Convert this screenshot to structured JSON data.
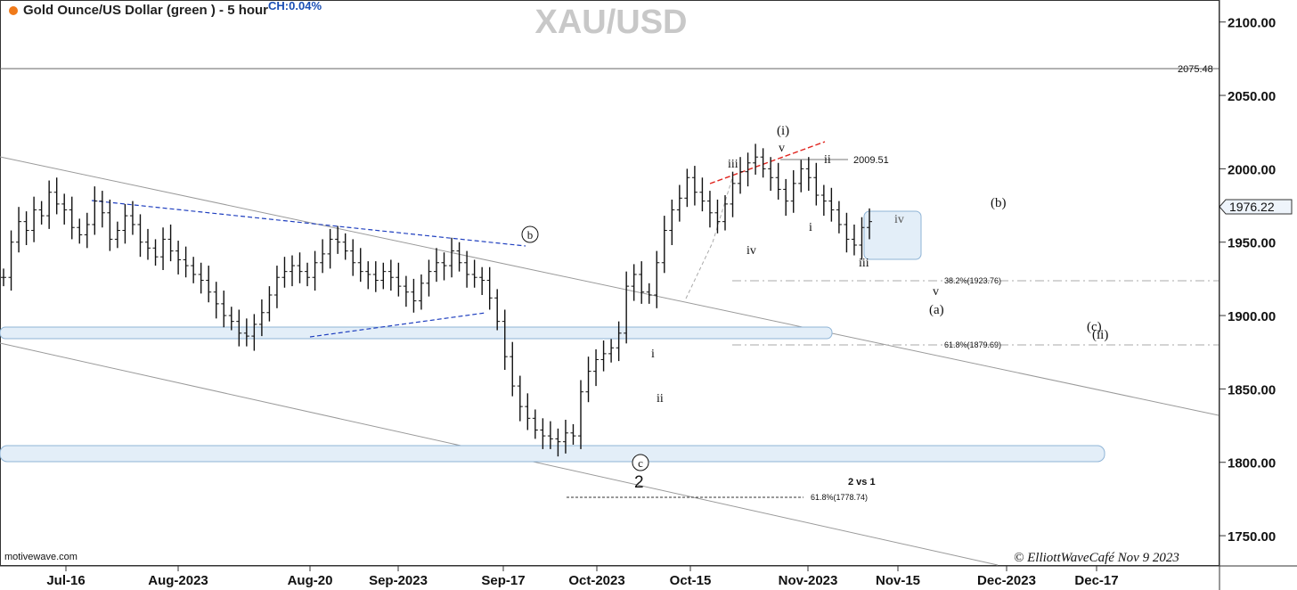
{
  "header": {
    "title": "Gold Ounce/US Dollar (green ) - 5 hour",
    "change": "CH:0.04%",
    "symbol": "XAU/USD"
  },
  "colors": {
    "accent_dot": "#f07a1a",
    "change_text": "#1a4fb5",
    "symbol_text": "#c8c8c8",
    "channel_fill": "#e3eef8",
    "channel_stroke": "#8fb4d6",
    "dashed_blue": "#1f3fbf",
    "dashed_red": "#e0241e",
    "price_bars": "#111111",
    "last_price_box": "#eef4fb"
  },
  "chart_data": {
    "type": "bar",
    "title": "XAU/USD",
    "source": "motivewave.com",
    "copyright": "© ElliottWaveCafé Nov 9 2023",
    "ylim": [
      1730,
      2115
    ],
    "y_ticks": [
      {
        "value": 2100,
        "label": "2100.00"
      },
      {
        "value": 2050,
        "label": "2050.00"
      },
      {
        "value": 2000,
        "label": "2000.00"
      },
      {
        "value": 1950,
        "label": "1950.00"
      },
      {
        "value": 1900,
        "label": "1900.00"
      },
      {
        "value": 1850,
        "label": "1850.00"
      },
      {
        "value": 1800,
        "label": "1800.00"
      },
      {
        "value": 1750,
        "label": "1750.00"
      }
    ],
    "x_ticks": [
      "Jul-16",
      "Aug-2023",
      "Aug-20",
      "Sep-2023",
      "Sep-17",
      "Oct-2023",
      "Oct-15",
      "Nov-2023",
      "Nov-15",
      "Dec-2023",
      "Dec-17"
    ],
    "last_price": {
      "value": 1976.22,
      "label": "1976.22"
    },
    "horizontal_levels": [
      {
        "value": 2075.48,
        "label": "2075.48"
      },
      {
        "value": 2009.51,
        "label": "2009.51"
      },
      {
        "value": 1923.76,
        "label": "38.2%(1923.76)"
      },
      {
        "value": 1879.69,
        "label": "61.8%(1879.69)"
      },
      {
        "value": 1778.74,
        "label": "61.8%(1778.74)"
      }
    ],
    "note": "2 vs 1",
    "wave_labels": [
      "(i)",
      "v",
      "iii",
      "ii",
      "i",
      "iv",
      "iii",
      "iv",
      "(b)",
      "v",
      "(a)",
      "(c)",
      "(ii)",
      "i",
      "ii",
      "b",
      "c",
      "2"
    ],
    "series": [
      {
        "values": [
          1926,
          1950,
          1964,
          1958,
          1972,
          1968,
          1984,
          1976,
          1972,
          1960,
          1955,
          1962,
          1978,
          1970,
          1952,
          1958,
          1968,
          1962,
          1950,
          1946,
          1940,
          1952,
          1944,
          1938,
          1934,
          1928,
          1924,
          1916,
          1908,
          1900,
          1896,
          1888,
          1886,
          1894,
          1902,
          1914,
          1926,
          1930,
          1934,
          1930,
          1926,
          1936,
          1942,
          1952,
          1950,
          1944,
          1936,
          1930,
          1928,
          1924,
          1930,
          1926,
          1920,
          1916,
          1910,
          1922,
          1930,
          1936,
          1934,
          1944,
          1936,
          1928,
          1926,
          1924,
          1912,
          1896,
          1872,
          1852,
          1838,
          1830,
          1822,
          1818,
          1816,
          1814,
          1820,
          1818,
          1848,
          1862,
          1870,
          1874,
          1878,
          1888,
          1920,
          1928,
          1916,
          1914,
          1936,
          1958,
          1972,
          1980,
          1994,
          1984,
          1978,
          1970,
          1964,
          1976,
          1990,
          1998,
          2004,
          2008,
          2000,
          1994,
          1986,
          1978,
          1990,
          2000,
          1994,
          1982,
          1978,
          1972,
          1962,
          1952,
          1948,
          1960,
          1964
        ]
      }
    ]
  }
}
